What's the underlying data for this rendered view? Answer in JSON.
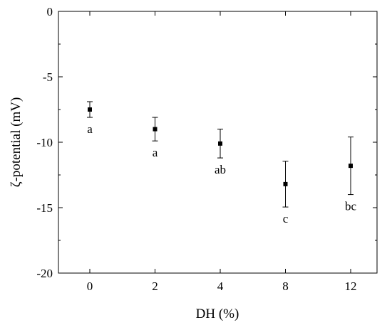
{
  "chart_data": {
    "type": "scatter",
    "title": "",
    "xlabel": "DH (%)",
    "ylabel": "ζ-potential (mV)",
    "categories": [
      "0",
      "2",
      "4",
      "8",
      "12"
    ],
    "values": [
      -7.5,
      -9.0,
      -10.1,
      -13.2,
      -11.8
    ],
    "errors": [
      0.6,
      0.9,
      1.1,
      1.75,
      2.2
    ],
    "significance": [
      "a",
      "a",
      "ab",
      "c",
      "bc"
    ],
    "ylim": [
      -20,
      0
    ],
    "yticks": [
      0,
      -5,
      -10,
      -15,
      -20
    ],
    "grid": false,
    "legend": "none",
    "marker_color": "#000000"
  }
}
